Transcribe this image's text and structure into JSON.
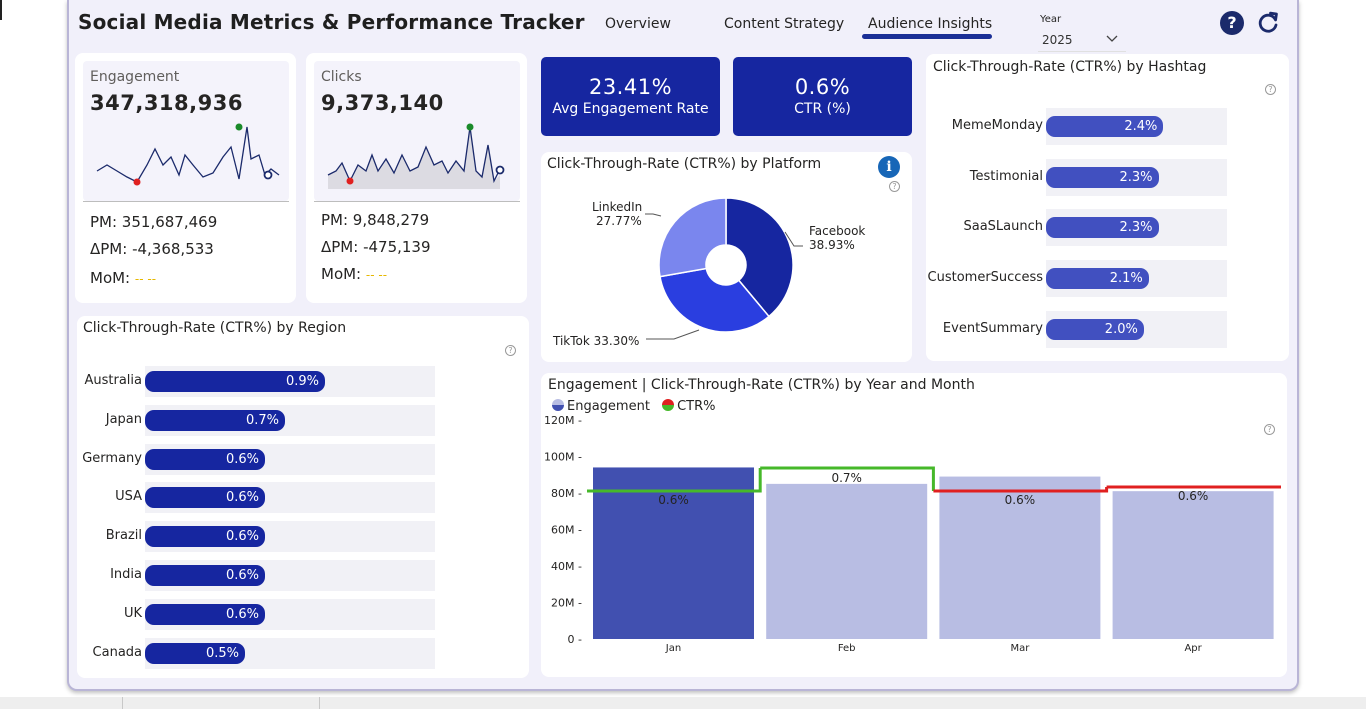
{
  "header": {
    "title": "Social Media Metrics & Performance Tracker",
    "tabs": [
      {
        "label": "Overview",
        "active": false
      },
      {
        "label": "Content Strategy",
        "active": false
      },
      {
        "label": "Audience Insights",
        "active": true
      }
    ],
    "year_filter": {
      "label": "Year",
      "value": "2025"
    },
    "help_icon": "question-circle-icon",
    "refresh_icon": "refresh-icon",
    "accent_color": "#1a2f96"
  },
  "kpis": {
    "engagement": {
      "label": "Engagement",
      "value": "347,318,936",
      "pm": "PM: 351,687,469",
      "delta_pm": "ΔPM: -4,368,533",
      "mom_label": "MoM:",
      "mom_value": "-- --"
    },
    "clicks": {
      "label": "Clicks",
      "value": "9,373,140",
      "pm": "PM: 9,848,279",
      "delta_pm": "ΔPM: -475,139",
      "mom_label": "MoM:",
      "mom_value": "-- --"
    },
    "avg_engagement_rate": {
      "value": "23.41%",
      "label": "Avg Engagement Rate"
    },
    "ctr": {
      "value": "0.6%",
      "label": "CTR (%)"
    },
    "card_color": "#1626a0"
  },
  "platform_chart": {
    "title": "Click-Through-Rate (CTR%) by Platform",
    "chart_data": {
      "type": "pie",
      "slices": [
        {
          "name": "Facebook",
          "value": 38.93,
          "label": "38.93%",
          "color": "#1626a0"
        },
        {
          "name": "TikTok",
          "value": 33.3,
          "label": "33.30%",
          "color": "#2a3ee0"
        },
        {
          "name": "LinkedIn",
          "value": 27.77,
          "label": "27.77%",
          "color": "#7a86ee"
        }
      ]
    }
  },
  "hashtag_chart": {
    "title": "Click-Through-Rate (CTR%) by Hashtag",
    "chart_data": {
      "type": "bar",
      "categories": [
        "MemeMonday",
        "Testimonial",
        "SaaSLaunch",
        "CustomerSuccess",
        "EventSummary"
      ],
      "values": [
        2.4,
        2.3,
        2.3,
        2.1,
        2.0
      ],
      "labels": [
        "2.4%",
        "2.3%",
        "2.3%",
        "2.1%",
        "2.0%"
      ],
      "max": 3.7,
      "color": "#4150c0"
    }
  },
  "region_chart": {
    "title": "Click-Through-Rate (CTR%) by Region",
    "chart_data": {
      "type": "bar",
      "categories": [
        "Australia",
        "Japan",
        "Germany",
        "USA",
        "Brazil",
        "India",
        "UK",
        "Canada"
      ],
      "values": [
        0.9,
        0.7,
        0.6,
        0.6,
        0.6,
        0.6,
        0.6,
        0.5
      ],
      "labels": [
        "0.9%",
        "0.7%",
        "0.6%",
        "0.6%",
        "0.6%",
        "0.6%",
        "0.6%",
        "0.5%"
      ],
      "max": 1.45,
      "color": "#1626a0"
    }
  },
  "combo_chart": {
    "title": "Engagement | Click-Through-Rate (CTR%) by Year and Month",
    "legend": [
      {
        "name": "Engagement",
        "icon": "engagement-legend-icon"
      },
      {
        "name": "CTR%",
        "icon": "ctr-legend-icon"
      }
    ],
    "chart_data": {
      "type": "bar",
      "categories": [
        "Jan",
        "Feb",
        "Mar",
        "Apr"
      ],
      "series": [
        {
          "name": "Engagement",
          "values": [
            94000000,
            85000000,
            89000000,
            81000000
          ],
          "colors": [
            "#4150b0",
            "#b8bde3",
            "#b8bde3",
            "#b8bde3"
          ]
        },
        {
          "name": "CTR%",
          "values": [
            0.6,
            0.7,
            0.6,
            0.6
          ],
          "labels": [
            "0.6%",
            "0.7%",
            "0.6%",
            "0.6%"
          ]
        }
      ],
      "ctr_series_colors": [
        "#46b82a",
        "#46b82a",
        "#e02020",
        "#e02020"
      ],
      "y_ticks": [
        "0",
        "20M",
        "40M",
        "60M",
        "80M",
        "100M",
        "120M"
      ],
      "ylim": [
        0,
        120000000
      ]
    }
  }
}
